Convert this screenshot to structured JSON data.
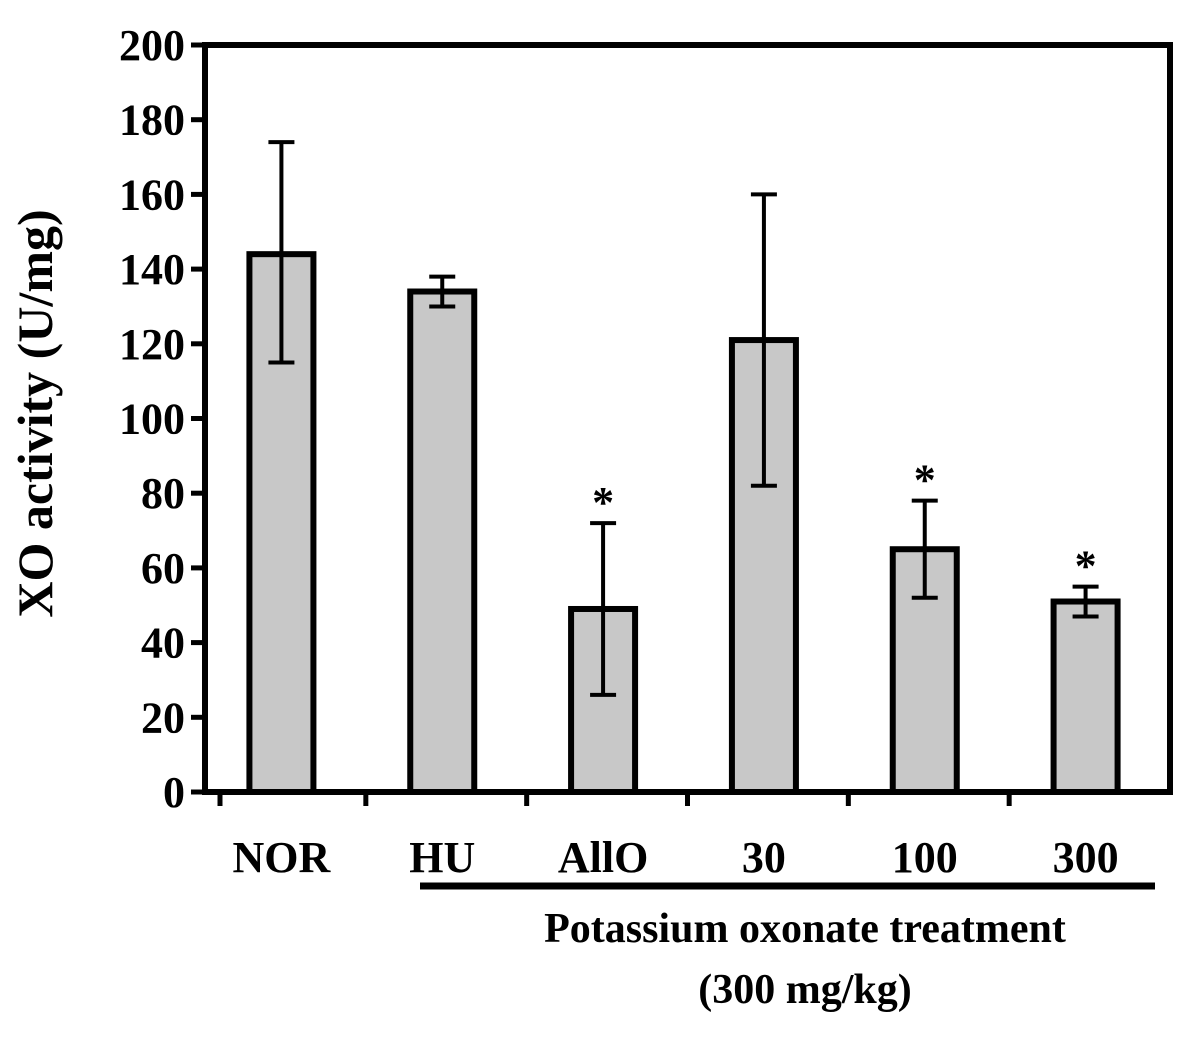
{
  "chart_data": {
    "type": "bar",
    "ylabel": "XO activity (U/mg)",
    "ylim": [
      0,
      200
    ],
    "yticks": [
      "0",
      "20",
      "40",
      "60",
      "80",
      "100",
      "120",
      "140",
      "160",
      "180",
      "200"
    ],
    "categories": [
      "NOR",
      "HU",
      "AllO",
      "30",
      "100",
      "300"
    ],
    "values": [
      144,
      134,
      49,
      121,
      65,
      51
    ],
    "error_low": [
      115,
      130,
      26,
      82,
      52,
      47
    ],
    "error_high": [
      174,
      138,
      72,
      160,
      78,
      55
    ],
    "significance": [
      "",
      "",
      "*",
      "",
      "*",
      "*"
    ],
    "bar_color": "#c8c8c8",
    "grid": false,
    "group_label": {
      "line1": "Potassium oxonate treatment",
      "line2": "(300 mg/kg)"
    }
  }
}
